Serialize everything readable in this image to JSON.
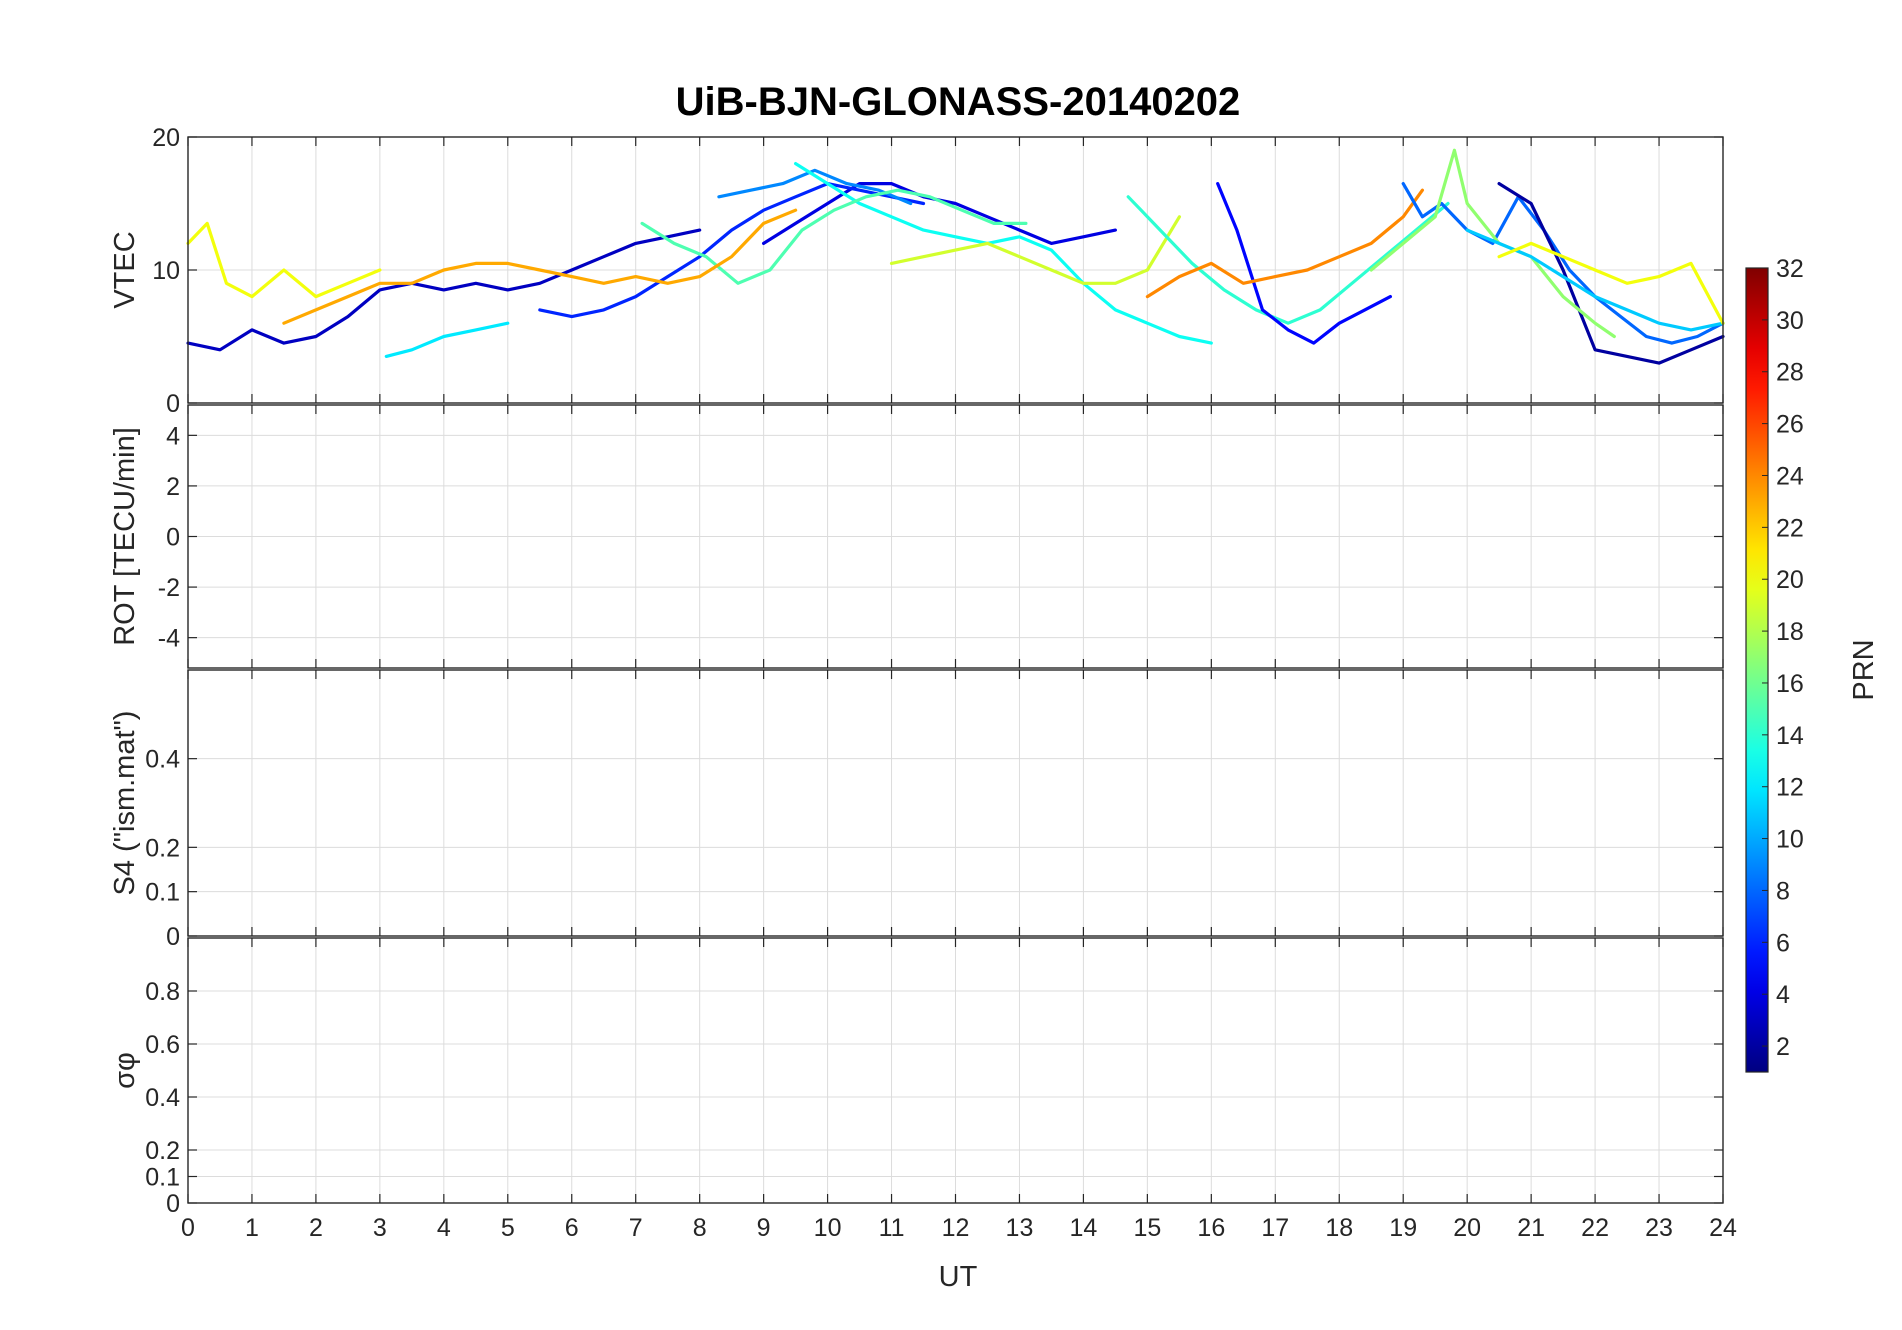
{
  "chart_data": {
    "type": "line",
    "title": "UiB-BJN-GLONASS-20140202",
    "xlabel": "UT",
    "x_ticks": [
      "0",
      "1",
      "2",
      "3",
      "4",
      "5",
      "6",
      "7",
      "8",
      "9",
      "10",
      "11",
      "12",
      "13",
      "14",
      "15",
      "16",
      "17",
      "18",
      "19",
      "20",
      "21",
      "22",
      "23",
      "24"
    ],
    "xlim": [
      0,
      24
    ],
    "grid": true,
    "colormap": "jet",
    "colorbar": {
      "label": "PRN",
      "range": [
        1,
        32
      ],
      "ticks": [
        "2",
        "4",
        "6",
        "8",
        "10",
        "12",
        "14",
        "16",
        "18",
        "20",
        "22",
        "24",
        "26",
        "28",
        "30",
        "32"
      ]
    },
    "panels": [
      {
        "key": "vtec",
        "ylabel": "VTEC",
        "ylim": [
          0,
          20
        ],
        "ytick_values": [
          0,
          10,
          20
        ],
        "ytick_labels": [
          "0",
          "10",
          "20"
        ],
        "series": [
          {
            "prn": 3,
            "x": [
              0,
              0.5,
              1,
              1.5,
              2,
              2.5,
              3,
              3.5,
              4,
              4.5,
              5,
              5.5,
              6,
              6.5,
              7,
              7.5,
              8
            ],
            "y": [
              4.5,
              4,
              5.5,
              4.5,
              5,
              6.5,
              8.5,
              9,
              8.5,
              9,
              8.5,
              9,
              10,
              11,
              12,
              12.5,
              13
            ]
          },
          {
            "prn": 4,
            "x": [
              9,
              9.5,
              10,
              10.5,
              11,
              11.5,
              12,
              12.5,
              13,
              13.5,
              14,
              14.5
            ],
            "y": [
              12,
              13.5,
              15,
              16.5,
              16.5,
              15.5,
              15,
              14,
              13,
              12,
              12.5,
              13
            ]
          },
          {
            "prn": 6,
            "x": [
              5.5,
              6,
              6.5,
              7,
              7.5,
              8,
              8.5,
              9,
              9.5,
              10,
              10.5,
              11,
              11.5
            ],
            "y": [
              7,
              6.5,
              7,
              8,
              9.5,
              11,
              13,
              14.5,
              15.5,
              16.5,
              16,
              15.5,
              15
            ]
          },
          {
            "prn": 9,
            "x": [
              8.3,
              8.8,
              9.3,
              9.8,
              10.3,
              10.8,
              11.3
            ],
            "y": [
              15.5,
              16,
              16.5,
              17.5,
              16.5,
              16,
              15
            ]
          },
          {
            "prn": 13,
            "x": [
              9.5,
              10,
              10.5,
              11,
              11.5,
              12,
              12.5,
              13,
              13.5,
              14,
              14.5,
              15,
              15.5,
              16
            ],
            "y": [
              18,
              16.5,
              15,
              14,
              13,
              12.5,
              12,
              12.5,
              11.5,
              9,
              7,
              6,
              5,
              4.5
            ]
          },
          {
            "prn": 12,
            "x": [
              3.1,
              3.5,
              4,
              4.5,
              5
            ],
            "y": [
              3.5,
              4,
              5,
              5.5,
              6
            ]
          },
          {
            "prn": 15,
            "x": [
              7.1,
              7.6,
              8.1,
              8.6,
              9.1,
              9.6,
              10.1,
              10.6,
              11.1,
              11.6,
              12.1,
              12.6,
              13.1
            ],
            "y": [
              13.5,
              12,
              11,
              9,
              10,
              13,
              14.5,
              15.5,
              16,
              15.5,
              14.5,
              13.5,
              13.5
            ]
          },
          {
            "prn": 23,
            "x": [
              1.5,
              2,
              2.5,
              3,
              3.5,
              4,
              4.5,
              5,
              5.5,
              6,
              6.5,
              7,
              7.5,
              8,
              8.5,
              9,
              9.5
            ],
            "y": [
              6,
              7,
              8,
              9,
              9,
              10,
              10.5,
              10.5,
              10,
              9.5,
              9,
              9.5,
              9,
              9.5,
              11,
              13.5,
              14.5
            ]
          },
          {
            "prn": 20,
            "x": [
              0,
              0.3,
              0.6,
              1,
              1.5,
              2,
              2.5,
              3
            ],
            "y": [
              12,
              13.5,
              9,
              8,
              10,
              8,
              9,
              10
            ]
          },
          {
            "prn": 19,
            "x": [
              11,
              11.5,
              12,
              12.5,
              13,
              13.5,
              14,
              14.5,
              15,
              15.5
            ],
            "y": [
              10.5,
              11,
              11.5,
              12,
              11,
              10,
              9,
              9,
              10,
              14
            ]
          },
          {
            "prn": 14,
            "x": [
              14.7,
              15.2,
              15.7,
              16.2,
              16.7,
              17.2,
              17.7,
              18.2,
              18.7,
              19.2,
              19.7
            ],
            "y": [
              15.5,
              13,
              10.5,
              8.5,
              7,
              6,
              7,
              9,
              11,
              13,
              15
            ]
          },
          {
            "prn": 5,
            "x": [
              16.1,
              16.4,
              16.8,
              17.2,
              17.6,
              18,
              18.4,
              18.8
            ],
            "y": [
              16.5,
              13,
              7,
              5.5,
              4.5,
              6,
              7,
              8
            ]
          },
          {
            "prn": 24,
            "x": [
              15,
              15.5,
              16,
              16.5,
              17,
              17.5,
              18,
              18.5,
              19,
              19.3
            ],
            "y": [
              8,
              9.5,
              10.5,
              9,
              9.5,
              10,
              11,
              12,
              14,
              16
            ]
          },
          {
            "prn": 8,
            "x": [
              19,
              19.3,
              19.6,
              20,
              20.4,
              20.8,
              21.2,
              21.6,
              22,
              22.4,
              22.8,
              23.2,
              23.6,
              24
            ],
            "y": [
              16.5,
              14,
              15,
              13,
              12,
              15.5,
              13,
              10,
              8,
              6.5,
              5,
              4.5,
              5,
              6
            ]
          },
          {
            "prn": 2,
            "x": [
              20.5,
              21,
              21.5,
              22,
              22.5,
              23,
              23.5,
              24
            ],
            "y": [
              16.5,
              15,
              10,
              4,
              3.5,
              3,
              4,
              5
            ]
          },
          {
            "prn": 17,
            "x": [
              18.5,
              19,
              19.5,
              19.8,
              20,
              20.5,
              21,
              21.5,
              22,
              22.3
            ],
            "y": [
              10,
              12,
              14,
              19,
              15,
              12,
              11,
              8,
              6,
              5
            ]
          },
          {
            "prn": 11,
            "x": [
              20,
              20.5,
              21,
              21.5,
              22,
              22.5,
              23,
              23.5,
              24
            ],
            "y": [
              13,
              12,
              11,
              9.5,
              8,
              7,
              6,
              5.5,
              6
            ]
          },
          {
            "prn": 20,
            "x": [
              20.5,
              21,
              21.5,
              22,
              22.5,
              23,
              23.5,
              24
            ],
            "y": [
              11,
              12,
              11,
              10,
              9,
              9.5,
              10.5,
              6
            ]
          }
        ]
      },
      {
        "key": "rot",
        "ylabel": "ROT [TECU/min]",
        "ylim": [
          -5.2,
          5.2
        ],
        "ytick_values": [
          -4,
          -2,
          0,
          2,
          4
        ],
        "ytick_labels": [
          "-4",
          "-2",
          "0",
          "2",
          "4"
        ]
      },
      {
        "key": "s4",
        "ylabel": "S4 (\"ism.mat\")",
        "ylim": [
          0,
          0.6
        ],
        "ytick_values": [
          0,
          0.1,
          0.2,
          0.4
        ],
        "ytick_labels": [
          "0",
          "0.1",
          "0.2",
          "0.4"
        ]
      },
      {
        "key": "sigma",
        "ylabel": "σφ",
        "ylim": [
          0,
          1
        ],
        "ytick_values": [
          0,
          0.1,
          0.2,
          0.4,
          0.6,
          0.8
        ],
        "ytick_labels": [
          "0",
          "0.1",
          "0.2",
          "0.4",
          "0.6",
          "0.8"
        ]
      }
    ]
  }
}
